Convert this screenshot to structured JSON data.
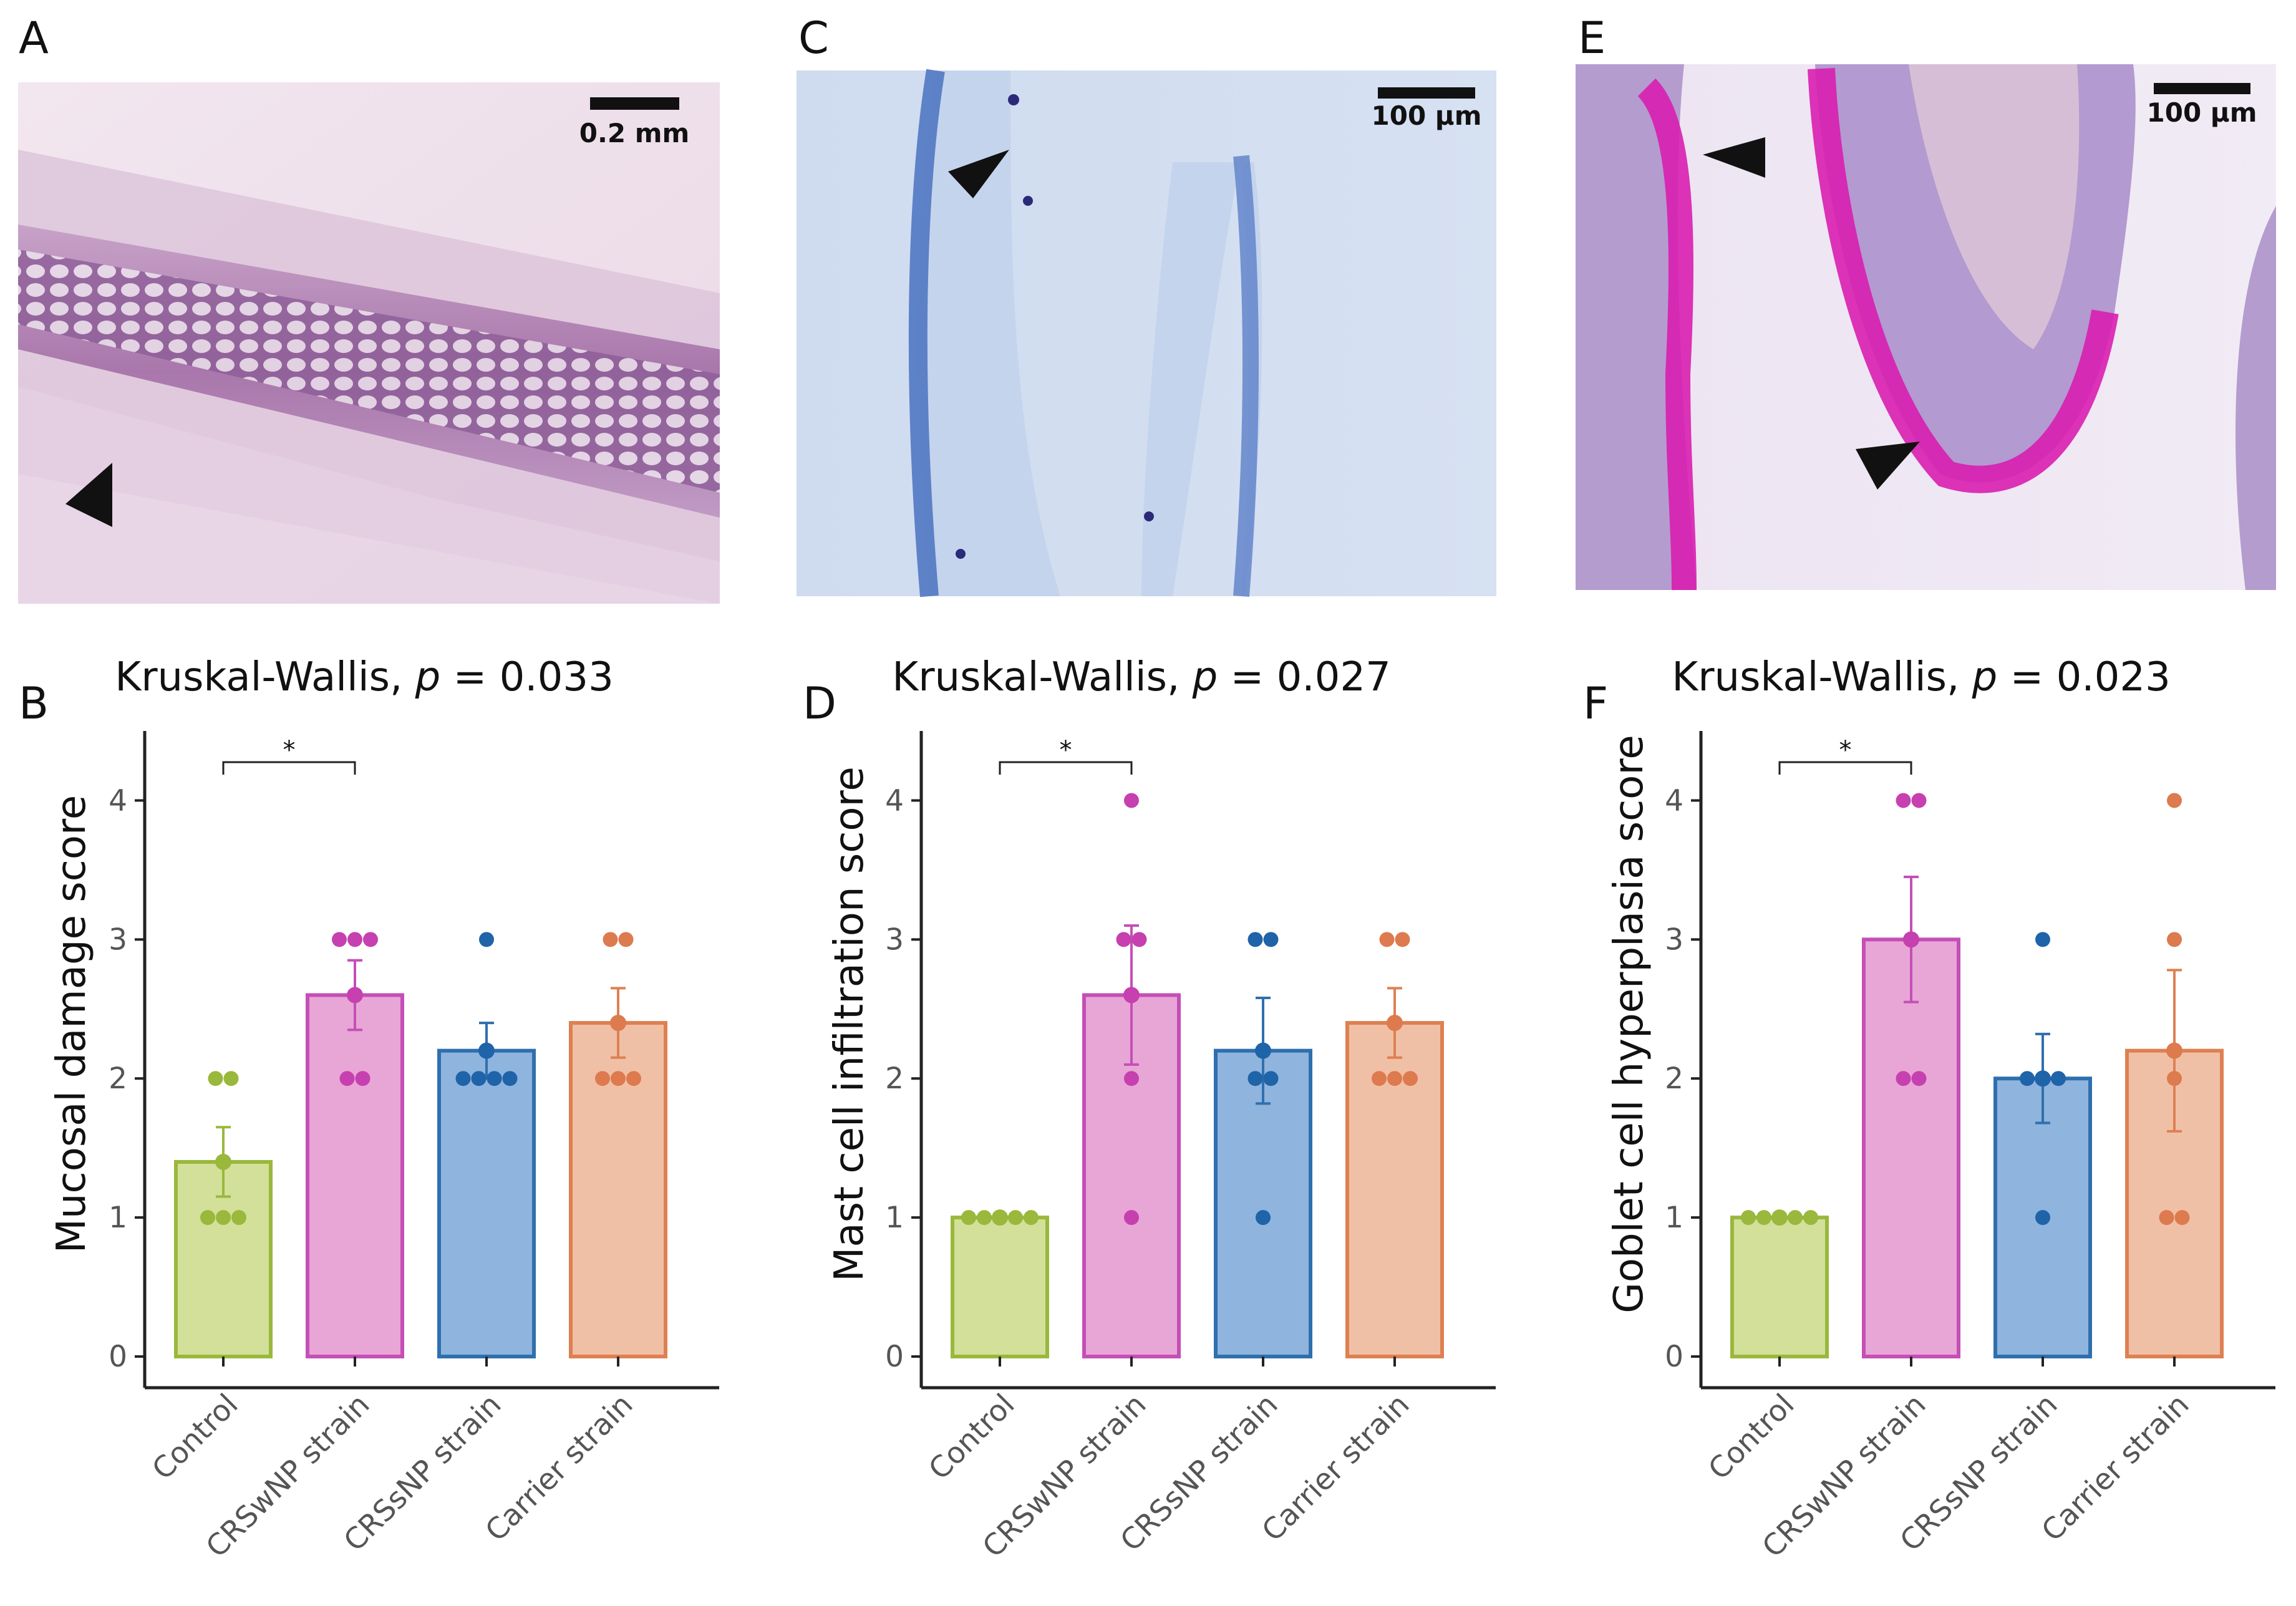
{
  "panels": [
    {
      "letter": "A",
      "scale_bar": "0.2 mm"
    },
    {
      "letter": "C",
      "scale_bar": "100 µm"
    },
    {
      "letter": "E",
      "scale_bar": "100 µm"
    }
  ],
  "chart_data": [
    {
      "type": "bar",
      "panel": "B",
      "title": "Kruskal-Wallis, p = 0.033",
      "title_prefix": "Kruskal-Wallis, ",
      "title_p": "p",
      "title_value": " = 0.033",
      "ylabel": "Mucosal damage score",
      "xlabel": "",
      "ylim": [
        0,
        4.5
      ],
      "yticks": [
        0,
        1,
        2,
        3,
        4
      ],
      "categories": [
        "Control",
        "CRSwNP strain",
        "CRSsNP strain",
        "Carrier strain"
      ],
      "values": [
        1.4,
        2.6,
        2.2,
        2.4
      ],
      "error_upper": [
        1.65,
        2.85,
        2.4,
        2.65
      ],
      "error_lower": [
        1.15,
        2.35,
        2.0,
        2.15
      ],
      "points": [
        [
          1,
          1,
          1,
          2,
          2
        ],
        [
          2,
          2,
          3,
          3,
          3
        ],
        [
          2,
          2,
          2,
          2,
          3
        ],
        [
          2,
          2,
          2,
          3,
          3
        ]
      ],
      "significance": [
        {
          "from": 0,
          "to": 1,
          "label": "*"
        }
      ]
    },
    {
      "type": "bar",
      "panel": "D",
      "title": "Kruskal-Wallis, p = 0.027",
      "title_prefix": "Kruskal-Wallis, ",
      "title_p": "p",
      "title_value": " = 0.027",
      "ylabel": "Mast cell infiltration score",
      "xlabel": "",
      "ylim": [
        0,
        4.5
      ],
      "yticks": [
        0,
        1,
        2,
        3,
        4
      ],
      "categories": [
        "Control",
        "CRSwNP strain",
        "CRSsNP strain",
        "Carrier strain"
      ],
      "values": [
        1.0,
        2.6,
        2.2,
        2.4
      ],
      "error_upper": [
        1.0,
        3.1,
        2.58,
        2.65
      ],
      "error_lower": [
        1.0,
        2.1,
        1.82,
        2.15
      ],
      "points": [
        [
          1,
          1,
          1,
          1,
          1
        ],
        [
          1,
          2,
          3,
          3,
          4
        ],
        [
          1,
          2,
          2,
          3,
          3
        ],
        [
          2,
          2,
          2,
          3,
          3
        ]
      ],
      "significance": [
        {
          "from": 0,
          "to": 1,
          "label": "*"
        }
      ]
    },
    {
      "type": "bar",
      "panel": "F",
      "title": "Kruskal-Wallis, p = 0.023",
      "title_prefix": "Kruskal-Wallis, ",
      "title_p": "p",
      "title_value": " = 0.023",
      "ylabel": "Goblet cell hyperplasia score",
      "xlabel": "",
      "ylim": [
        0,
        4.5
      ],
      "yticks": [
        0,
        1,
        2,
        3,
        4
      ],
      "categories": [
        "Control",
        "CRSwNP strain",
        "CRSsNP strain",
        "Carrier strain"
      ],
      "values": [
        1.0,
        3.0,
        2.0,
        2.2
      ],
      "error_upper": [
        1.0,
        3.45,
        2.32,
        2.78
      ],
      "error_lower": [
        1.0,
        2.55,
        1.68,
        1.62
      ],
      "points": [
        [
          1,
          1,
          1,
          1,
          1
        ],
        [
          2,
          2,
          3,
          4,
          4
        ],
        [
          1,
          2,
          2,
          2,
          3
        ],
        [
          1,
          1,
          2,
          3,
          4
        ]
      ],
      "significance": [
        {
          "from": 0,
          "to": 1,
          "label": "*"
        }
      ]
    }
  ],
  "colors": {
    "fill": [
      "#d3e09a",
      "#e8a6d6",
      "#8fb4dd",
      "#f0c0a6"
    ],
    "stroke": [
      "#9ab83c",
      "#c44fb6",
      "#2f6fae",
      "#de8052"
    ],
    "point": [
      "#9ab83c",
      "#c640b0",
      "#1f63a8",
      "#dd7a4e"
    ]
  }
}
